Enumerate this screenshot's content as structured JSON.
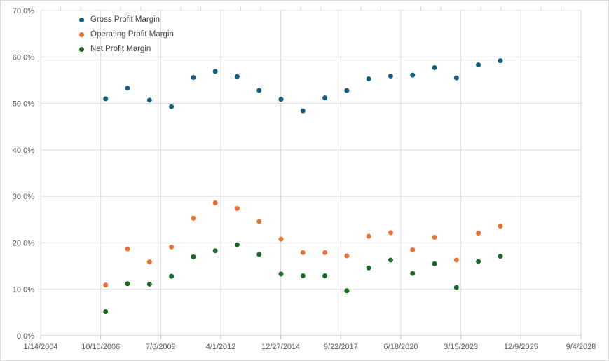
{
  "chart_data": {
    "type": "scatter",
    "title": "",
    "xlabel": "",
    "ylabel": "",
    "x_axis_type": "date",
    "x_min": "2004-01-14",
    "x_max": "2028-09-04",
    "x_tick_labels": [
      "1/14/2004",
      "10/10/2006",
      "7/6/2009",
      "4/1/2012",
      "12/27/2014",
      "9/22/2017",
      "6/18/2020",
      "3/15/2023",
      "12/9/2025",
      "9/4/2028"
    ],
    "y_tick_labels": [
      "0.0%",
      "10.0%",
      "20.0%",
      "30.0%",
      "40.0%",
      "50.0%",
      "60.0%",
      "70.0%"
    ],
    "ylim": [
      0,
      70
    ],
    "y_tick_step": 10,
    "y_unit": "%",
    "grid": true,
    "legend_position": "top-left-inside",
    "x_dates": [
      "2006-12-31",
      "2007-12-31",
      "2008-12-31",
      "2009-12-31",
      "2010-12-31",
      "2011-12-31",
      "2012-12-31",
      "2013-12-31",
      "2014-12-31",
      "2015-12-31",
      "2016-12-31",
      "2017-12-31",
      "2018-12-31",
      "2019-12-31",
      "2020-12-31",
      "2021-12-31",
      "2022-12-31",
      "2023-12-31",
      "2024-12-31"
    ],
    "series": [
      {
        "name": "Gross Profit Margin",
        "color": "#156082",
        "values": [
          51.0,
          53.3,
          50.7,
          49.3,
          55.6,
          56.9,
          55.8,
          52.8,
          50.9,
          48.4,
          51.2,
          52.8,
          55.3,
          55.9,
          56.1,
          57.7,
          55.5,
          58.3,
          59.2
        ]
      },
      {
        "name": "Operating Profit Margin",
        "color": "#E97132",
        "values": [
          10.9,
          18.7,
          15.9,
          19.1,
          25.3,
          28.6,
          27.4,
          24.6,
          20.8,
          17.9,
          17.9,
          17.2,
          21.4,
          22.2,
          18.5,
          21.2,
          16.3,
          22.1,
          23.6
        ]
      },
      {
        "name": "Net Profit Margin",
        "color": "#196B24",
        "values": [
          5.2,
          11.2,
          11.1,
          12.8,
          17.0,
          18.3,
          19.6,
          17.5,
          13.3,
          12.9,
          12.9,
          9.7,
          14.6,
          16.3,
          13.4,
          15.5,
          10.4,
          16.0,
          17.1
        ]
      }
    ],
    "colors": {
      "gridline": "#d9d9d9",
      "axis_line": "#bfbfbf",
      "tick_label": "#595959",
      "legend_text": "#404040",
      "background": "#ffffff"
    }
  }
}
